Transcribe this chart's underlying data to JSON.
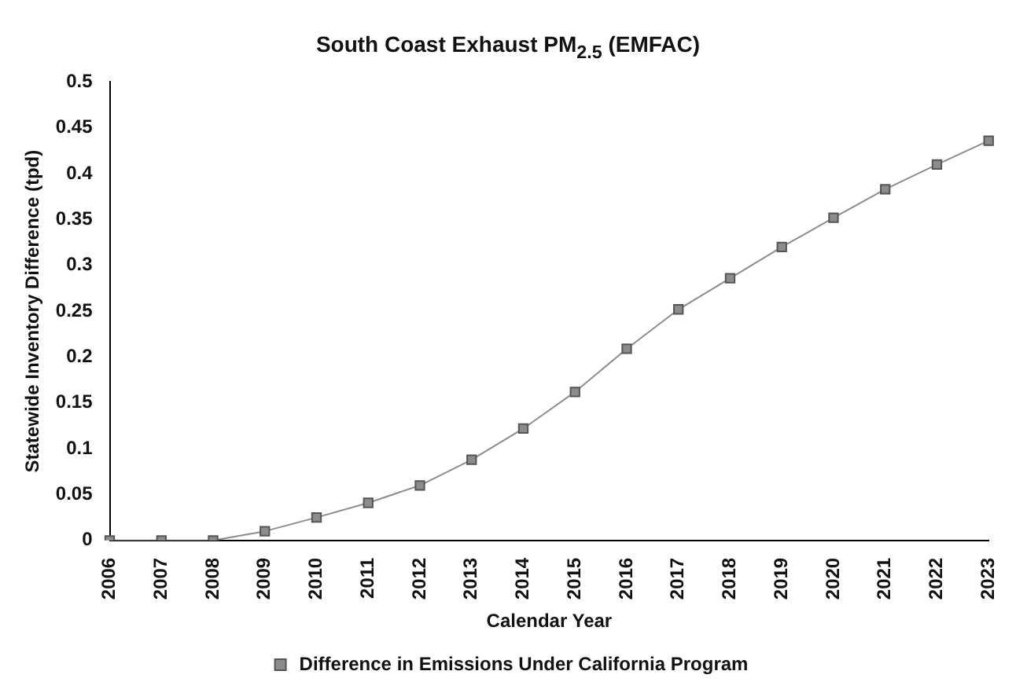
{
  "chart_data": {
    "type": "line",
    "title": "South Coast Exhaust PM$_{2.5}$ (EMFAC)",
    "xlabel": "Calendar Year",
    "ylabel": "Statewide Inventory Difference (tpd)",
    "categories": [
      "2006",
      "2007",
      "2008",
      "2009",
      "2010",
      "2011",
      "2012",
      "2013",
      "2014",
      "2015",
      "2016",
      "2017",
      "2018",
      "2019",
      "2020",
      "2021",
      "2022",
      "2023"
    ],
    "series": [
      {
        "name": "Difference in Emissions Under California Program",
        "color": "#8c8c8c",
        "values": [
          0,
          0,
          0,
          0.01,
          0.025,
          0.041,
          0.06,
          0.088,
          0.122,
          0.162,
          0.209,
          0.252,
          0.286,
          0.32,
          0.352,
          0.383,
          0.41,
          0.436
        ]
      }
    ],
    "ylim": [
      0,
      0.5
    ],
    "yticks": [
      0,
      0.05,
      0.1,
      0.15,
      0.2,
      0.25,
      0.3,
      0.35,
      0.4,
      0.45,
      0.5
    ],
    "grid": false,
    "legend": "bottom",
    "marker": "square",
    "line_style": "solid"
  }
}
